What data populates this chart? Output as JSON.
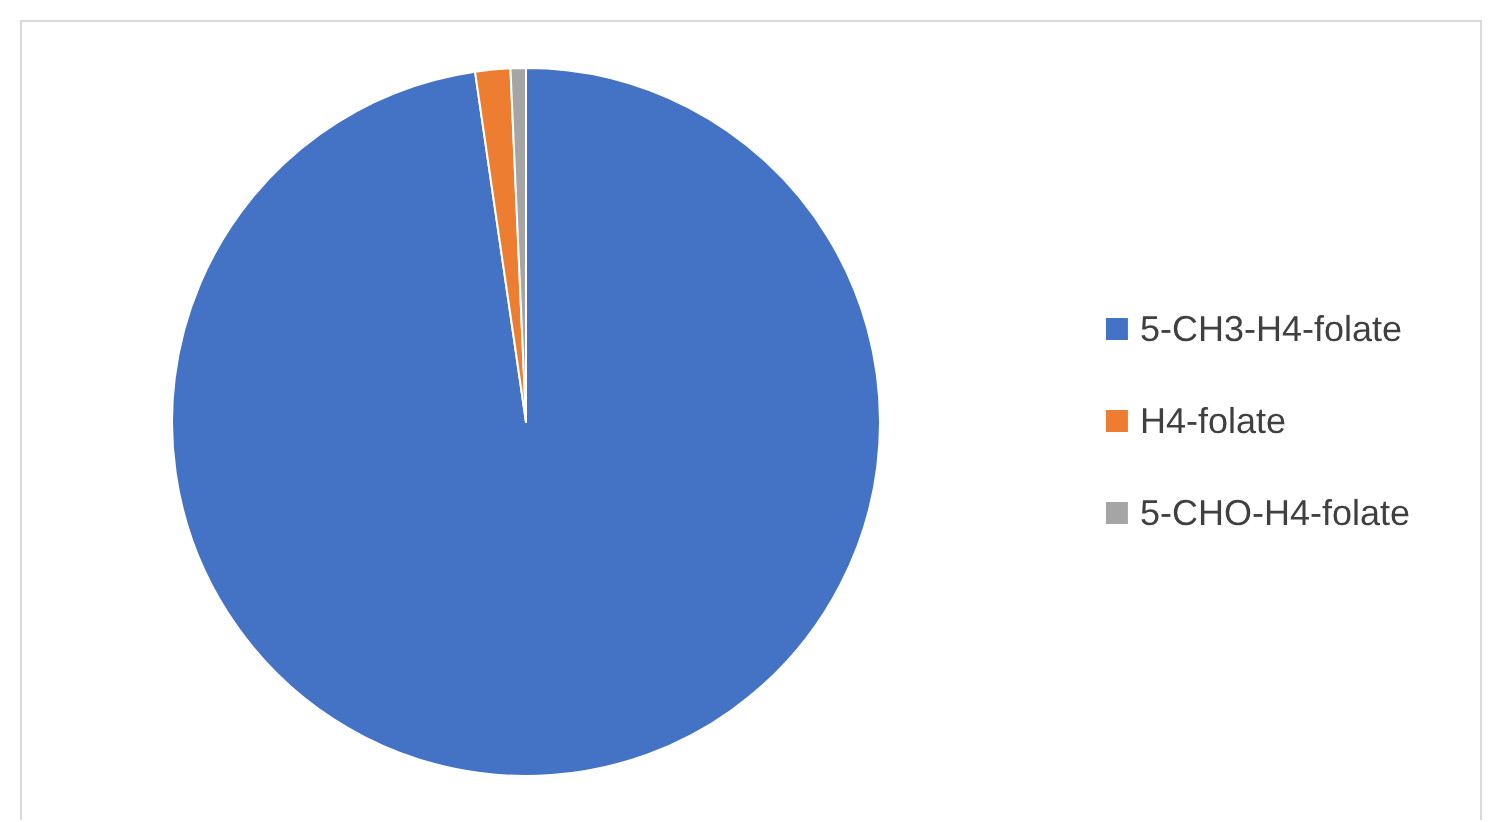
{
  "chart_data": {
    "type": "pie",
    "categories": [
      "5-CH3-H4-folate",
      "H4-folate",
      "5-CHO-H4-folate"
    ],
    "values": [
      97.7,
      1.6,
      0.7
    ],
    "colors": [
      "#4472c4",
      "#ed7d31",
      "#a5a5a5"
    ],
    "legend": "right"
  }
}
